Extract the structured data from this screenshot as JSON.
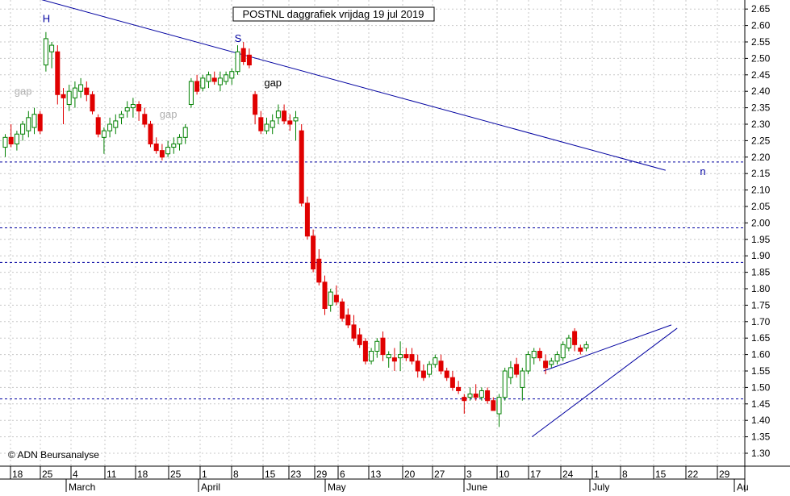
{
  "chart_data": {
    "type": "candlestick",
    "title": "POSTNL daggrafiek vrijdag 19 jul 2019",
    "copyright": "© ADN Beursanalyse",
    "ylim": [
      1.25,
      2.68
    ],
    "yticks": [
      1.3,
      1.35,
      1.4,
      1.45,
      1.5,
      1.55,
      1.6,
      1.65,
      1.7,
      1.75,
      1.8,
      1.85,
      1.9,
      1.95,
      2.0,
      2.05,
      2.1,
      2.15,
      2.2,
      2.25,
      2.3,
      2.35,
      2.4,
      2.45,
      2.5,
      2.55,
      2.6,
      2.65
    ],
    "ytick_labels": [
      "1.30",
      "1.35",
      "1.40",
      "1.45",
      "1.50",
      "1.55",
      "1.60",
      "1.65",
      "1.70",
      "1.75",
      "1.80",
      "1.85",
      "1.90",
      "1.95",
      "2.00",
      "2.05",
      "2.10",
      "2.15",
      "2.20",
      "2.25",
      "2.30",
      "2.35",
      "2.40",
      "2.45",
      "2.50",
      "2.55",
      "2.60",
      "2.65"
    ],
    "x_day_labels": [
      "18",
      "25",
      "4",
      "11",
      "18",
      "25",
      "1",
      "8",
      "15",
      "23",
      "29",
      "6",
      "13",
      "20",
      "27",
      "3",
      "10",
      "17",
      "24",
      "1",
      "8",
      "15",
      "22",
      "29"
    ],
    "x_month_labels": [
      "March",
      "April",
      "May",
      "June",
      "July",
      "Au"
    ],
    "bull_color": "#008000",
    "bear_color": "#e00000",
    "line_color": "#0000a0",
    "candles": [
      [
        2.23,
        2.27,
        2.2,
        2.26
      ],
      [
        2.26,
        2.3,
        2.23,
        2.24
      ],
      [
        2.24,
        2.28,
        2.22,
        2.27
      ],
      [
        2.27,
        2.31,
        2.25,
        2.3
      ],
      [
        2.28,
        2.34,
        2.26,
        2.32
      ],
      [
        2.29,
        2.35,
        2.27,
        2.33
      ],
      [
        2.33,
        2.34,
        2.27,
        2.28
      ],
      [
        2.48,
        2.58,
        2.46,
        2.56
      ],
      [
        2.52,
        2.55,
        2.47,
        2.54
      ],
      [
        2.52,
        2.54,
        2.36,
        2.39
      ],
      [
        2.39,
        2.41,
        2.3,
        2.38
      ],
      [
        2.36,
        2.42,
        2.34,
        2.4
      ],
      [
        2.38,
        2.43,
        2.35,
        2.41
      ],
      [
        2.4,
        2.44,
        2.38,
        2.42
      ],
      [
        2.41,
        2.43,
        2.37,
        2.39
      ],
      [
        2.39,
        2.4,
        2.33,
        2.34
      ],
      [
        2.32,
        2.33,
        2.26,
        2.27
      ],
      [
        2.26,
        2.29,
        2.21,
        2.28
      ],
      [
        2.28,
        2.32,
        2.26,
        2.3
      ],
      [
        2.29,
        2.33,
        2.27,
        2.31
      ],
      [
        2.32,
        2.34,
        2.3,
        2.33
      ],
      [
        2.34,
        2.37,
        2.32,
        2.35
      ],
      [
        2.35,
        2.38,
        2.32,
        2.36
      ],
      [
        2.36,
        2.37,
        2.31,
        2.34
      ],
      [
        2.33,
        2.35,
        2.29,
        2.3
      ],
      [
        2.3,
        2.31,
        2.23,
        2.24
      ],
      [
        2.24,
        2.26,
        2.21,
        2.22
      ],
      [
        2.22,
        2.24,
        2.19,
        2.2
      ],
      [
        2.21,
        2.25,
        2.2,
        2.23
      ],
      [
        2.23,
        2.26,
        2.21,
        2.24
      ],
      [
        2.24,
        2.27,
        2.22,
        2.26
      ],
      [
        2.26,
        2.3,
        2.24,
        2.29
      ],
      [
        2.36,
        2.44,
        2.35,
        2.43
      ],
      [
        2.43,
        2.45,
        2.39,
        2.4
      ],
      [
        2.41,
        2.45,
        2.4,
        2.44
      ],
      [
        2.43,
        2.46,
        2.41,
        2.45
      ],
      [
        2.44,
        2.46,
        2.42,
        2.43
      ],
      [
        2.42,
        2.46,
        2.4,
        2.44
      ],
      [
        2.43,
        2.46,
        2.42,
        2.45
      ],
      [
        2.44,
        2.47,
        2.42,
        2.46
      ],
      [
        2.46,
        2.54,
        2.45,
        2.52
      ],
      [
        2.53,
        2.55,
        2.48,
        2.49
      ],
      [
        2.51,
        2.53,
        2.47,
        2.48
      ],
      [
        2.39,
        2.4,
        2.3,
        2.33
      ],
      [
        2.32,
        2.34,
        2.27,
        2.28
      ],
      [
        2.28,
        2.32,
        2.27,
        2.3
      ],
      [
        2.29,
        2.33,
        2.27,
        2.31
      ],
      [
        2.32,
        2.36,
        2.3,
        2.34
      ],
      [
        2.34,
        2.36,
        2.3,
        2.31
      ],
      [
        2.31,
        2.33,
        2.28,
        2.3
      ],
      [
        2.31,
        2.34,
        2.25,
        2.32
      ],
      [
        2.28,
        2.3,
        2.05,
        2.06
      ],
      [
        2.06,
        2.08,
        1.95,
        1.96
      ],
      [
        1.96,
        1.98,
        1.85,
        1.86
      ],
      [
        1.89,
        1.92,
        1.81,
        1.82
      ],
      [
        1.82,
        1.84,
        1.72,
        1.74
      ],
      [
        1.75,
        1.8,
        1.73,
        1.79
      ],
      [
        1.78,
        1.81,
        1.75,
        1.76
      ],
      [
        1.76,
        1.77,
        1.7,
        1.71
      ],
      [
        1.72,
        1.74,
        1.68,
        1.69
      ],
      [
        1.69,
        1.72,
        1.64,
        1.65
      ],
      [
        1.66,
        1.68,
        1.62,
        1.63
      ],
      [
        1.64,
        1.65,
        1.57,
        1.58
      ],
      [
        1.58,
        1.62,
        1.57,
        1.61
      ],
      [
        1.61,
        1.65,
        1.59,
        1.64
      ],
      [
        1.65,
        1.67,
        1.58,
        1.6
      ],
      [
        1.59,
        1.61,
        1.56,
        1.6
      ],
      [
        1.59,
        1.62,
        1.55,
        1.58
      ],
      [
        1.59,
        1.64,
        1.55,
        1.6
      ],
      [
        1.6,
        1.62,
        1.58,
        1.59
      ],
      [
        1.6,
        1.62,
        1.57,
        1.58
      ],
      [
        1.58,
        1.6,
        1.53,
        1.55
      ],
      [
        1.55,
        1.57,
        1.52,
        1.53
      ],
      [
        1.54,
        1.58,
        1.53,
        1.57
      ],
      [
        1.57,
        1.6,
        1.56,
        1.59
      ],
      [
        1.58,
        1.6,
        1.54,
        1.55
      ],
      [
        1.55,
        1.56,
        1.52,
        1.53
      ],
      [
        1.53,
        1.55,
        1.49,
        1.5
      ],
      [
        1.5,
        1.52,
        1.48,
        1.49
      ],
      [
        1.47,
        1.48,
        1.42,
        1.46
      ],
      [
        1.47,
        1.5,
        1.46,
        1.48
      ],
      [
        1.48,
        1.51,
        1.46,
        1.47
      ],
      [
        1.47,
        1.5,
        1.46,
        1.49
      ],
      [
        1.49,
        1.5,
        1.45,
        1.46
      ],
      [
        1.46,
        1.47,
        1.43,
        1.43
      ],
      [
        1.42,
        1.48,
        1.38,
        1.47
      ],
      [
        1.47,
        1.56,
        1.46,
        1.55
      ],
      [
        1.53,
        1.58,
        1.51,
        1.56
      ],
      [
        1.57,
        1.59,
        1.53,
        1.54
      ],
      [
        1.5,
        1.56,
        1.46,
        1.55
      ],
      [
        1.55,
        1.61,
        1.54,
        1.6
      ],
      [
        1.59,
        1.62,
        1.57,
        1.61
      ],
      [
        1.61,
        1.62,
        1.58,
        1.59
      ],
      [
        1.58,
        1.6,
        1.54,
        1.56
      ],
      [
        1.57,
        1.59,
        1.56,
        1.58
      ],
      [
        1.58,
        1.61,
        1.57,
        1.6
      ],
      [
        1.59,
        1.64,
        1.58,
        1.63
      ],
      [
        1.62,
        1.66,
        1.61,
        1.65
      ],
      [
        1.67,
        1.68,
        1.61,
        1.63
      ],
      [
        1.62,
        1.63,
        1.6,
        1.61
      ],
      [
        1.62,
        1.64,
        1.61,
        1.63
      ]
    ],
    "trendlines": [
      {
        "from": [
          -2,
          2.72
        ],
        "to": [
          114,
          2.16
        ]
      },
      {
        "from": [
          91,
          1.35
        ],
        "to": [
          116,
          1.68
        ]
      },
      {
        "from": [
          93,
          1.55
        ],
        "to": [
          115,
          1.69
        ]
      }
    ],
    "hlines": [
      2.185,
      1.985,
      1.88,
      1.465
    ],
    "annotations": [
      {
        "text": "H",
        "index": 7,
        "value": 2.61,
        "color": "#0000a0"
      },
      {
        "text": "S",
        "index": 40,
        "value": 2.55,
        "color": "#0000a0"
      },
      {
        "text": "n",
        "index": 120,
        "value": 2.145,
        "color": "#0000a0"
      },
      {
        "text": "gap",
        "index": 3,
        "value": 2.39,
        "color": "#b0b0b0"
      },
      {
        "text": "gap",
        "index": 28,
        "value": 2.32,
        "color": "#b0b0b0"
      },
      {
        "text": "gap",
        "index": 46,
        "value": 2.415,
        "color": "#000000"
      }
    ]
  }
}
